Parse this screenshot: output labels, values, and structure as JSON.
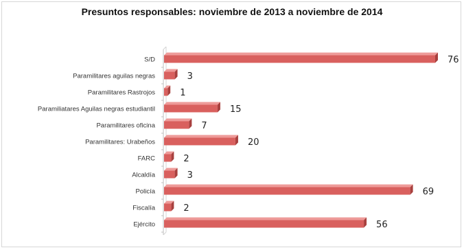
{
  "chart_data": {
    "type": "bar",
    "orientation": "horizontal",
    "style": "3d",
    "title": "Presuntos responsables:  noviembre de 2013 a noviembre de 2014",
    "categories": [
      "S/D",
      "Paramilitares aguilas negras",
      "Paramilitares Rastrojos",
      "Paramiliatares Aguilas negras estudiantil",
      "Paramilitares oficina",
      "Paramilitares: Urabeños",
      "FARC",
      "Alcaldía",
      "Policía",
      "Fiscalía",
      "Ejército"
    ],
    "values": [
      76,
      3,
      1,
      15,
      7,
      20,
      2,
      3,
      69,
      2,
      56
    ],
    "xlim": [
      0,
      80
    ],
    "bar_color": "#d9605e",
    "bar_top_color": "#ee9b99",
    "bar_side_color": "#a8403e",
    "grid": false,
    "legend": "none"
  }
}
